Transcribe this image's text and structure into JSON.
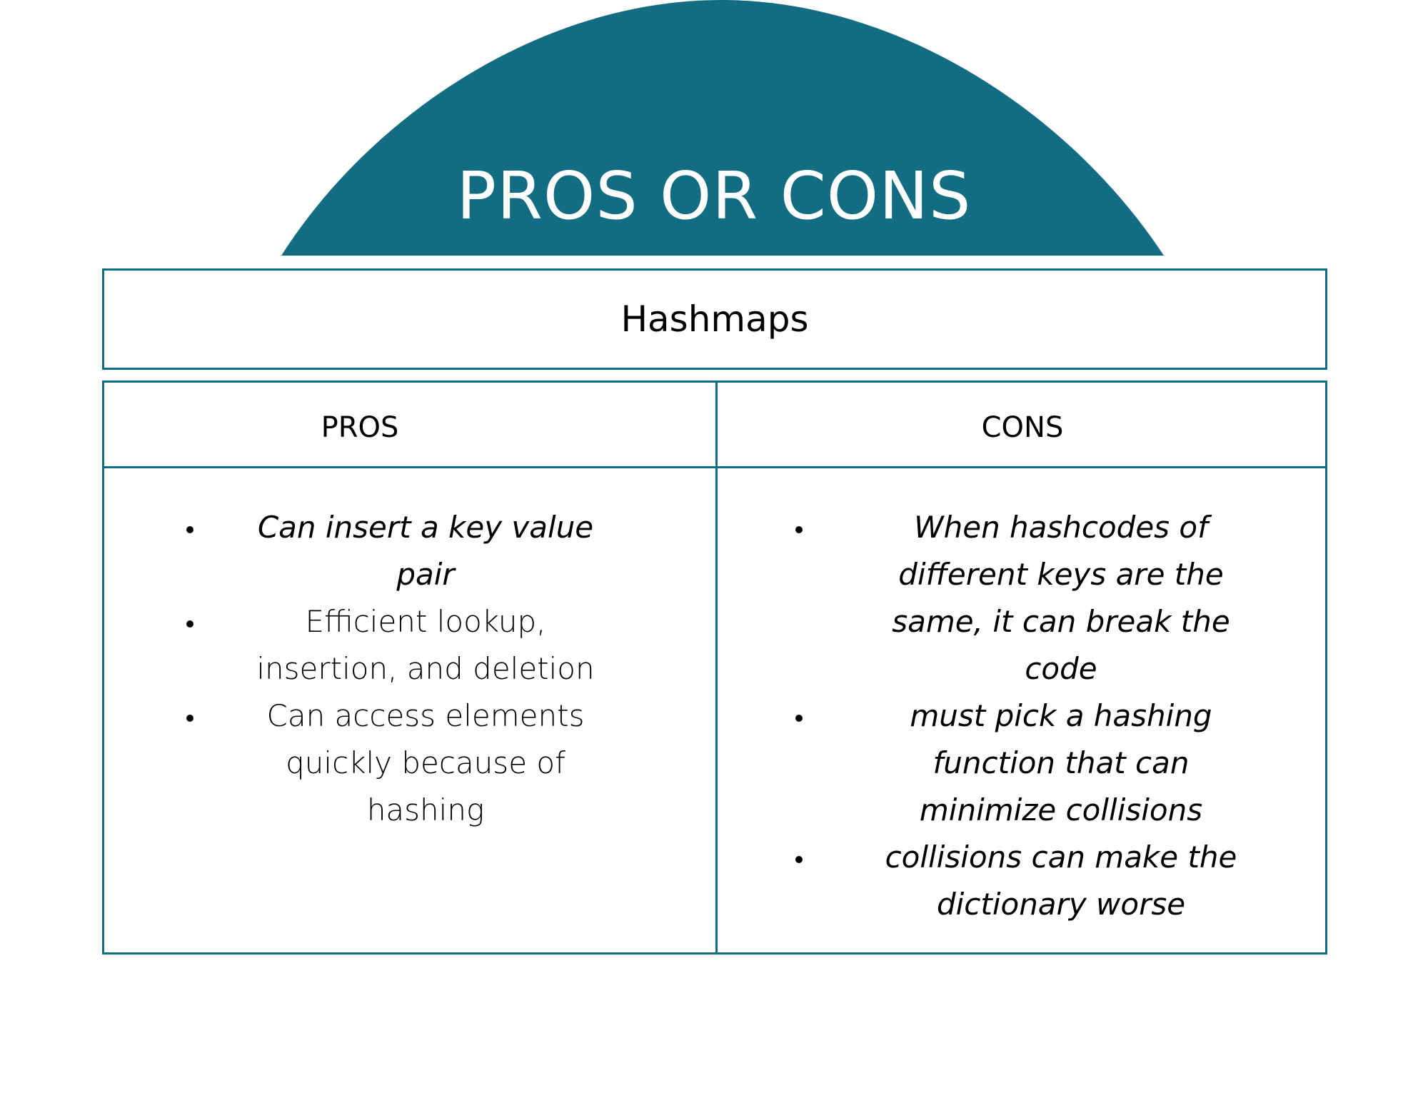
{
  "colors": {
    "accent": "#126d82",
    "title_text": "#ffffff",
    "body_text": "#000000",
    "background": "#ffffff"
  },
  "header": {
    "title": "PROS OR CONS"
  },
  "subject": {
    "title": "Hashmaps"
  },
  "table": {
    "pros_header": "PROS",
    "cons_header": "CONS",
    "pros": [
      "Can insert a key value pair",
      "Efficient lookup, insertion, and deletion",
      "Can access elements quickly because of hashing"
    ],
    "cons": [
      "When hashcodes of different keys are the same, it can break the code",
      "must pick a hashing function that can minimize collisions",
      "collisions can make the dictionary worse"
    ]
  }
}
